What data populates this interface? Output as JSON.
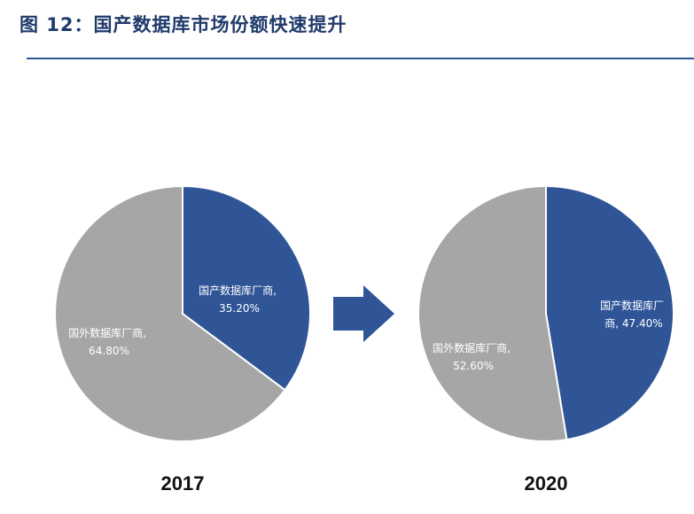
{
  "title": "图 12：国产数据库市场份额快速提升",
  "colors": {
    "domestic": "#2f5597",
    "foreign": "#a6a6a6",
    "arrow": "#2f5597",
    "title": "#1f3a6b"
  },
  "chart_data": [
    {
      "type": "pie",
      "title": "2017",
      "slices": [
        {
          "label": "国产数据库厂商,",
          "value": 35.2,
          "value_text": "35.20%",
          "color": "#2f5597"
        },
        {
          "label": "国外数据库厂商,",
          "value": 64.8,
          "value_text": "64.80%",
          "color": "#a6a6a6"
        }
      ]
    },
    {
      "type": "pie",
      "title": "2020",
      "slices": [
        {
          "label": "国产数据库厂",
          "label_line2": "商, 47.40%",
          "value": 47.4,
          "color": "#2f5597"
        },
        {
          "label": "国外数据库厂商,",
          "value": 52.6,
          "value_text": "52.60%",
          "color": "#a6a6a6"
        }
      ]
    }
  ]
}
